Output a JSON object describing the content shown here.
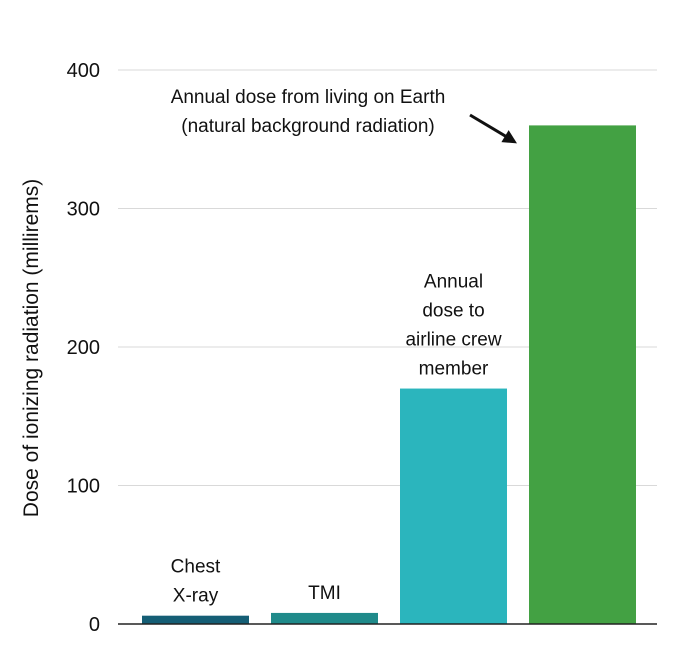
{
  "chart_data": {
    "type": "bar",
    "ylabel": "Dose of ionizing radiation (millirems)",
    "ylim": [
      0,
      400
    ],
    "yticks": [
      0,
      100,
      200,
      300,
      400
    ],
    "grid": true,
    "categories": [
      {
        "label_lines": [
          "Chest",
          "X-ray"
        ],
        "value": 6,
        "color": "#155e75"
      },
      {
        "label_lines": [
          "TMI"
        ],
        "value": 8,
        "color": "#1f8a8a"
      },
      {
        "label_lines": [
          "Annual",
          "dose to",
          "airline crew",
          "member"
        ],
        "value": 170,
        "color": "#2bb5bd"
      },
      {
        "label_lines": [],
        "value": 360,
        "color": "#43a143"
      }
    ],
    "annotation": {
      "lines": [
        "Annual dose from living on Earth",
        "(natural background radiation)"
      ],
      "target_category": 3
    }
  }
}
